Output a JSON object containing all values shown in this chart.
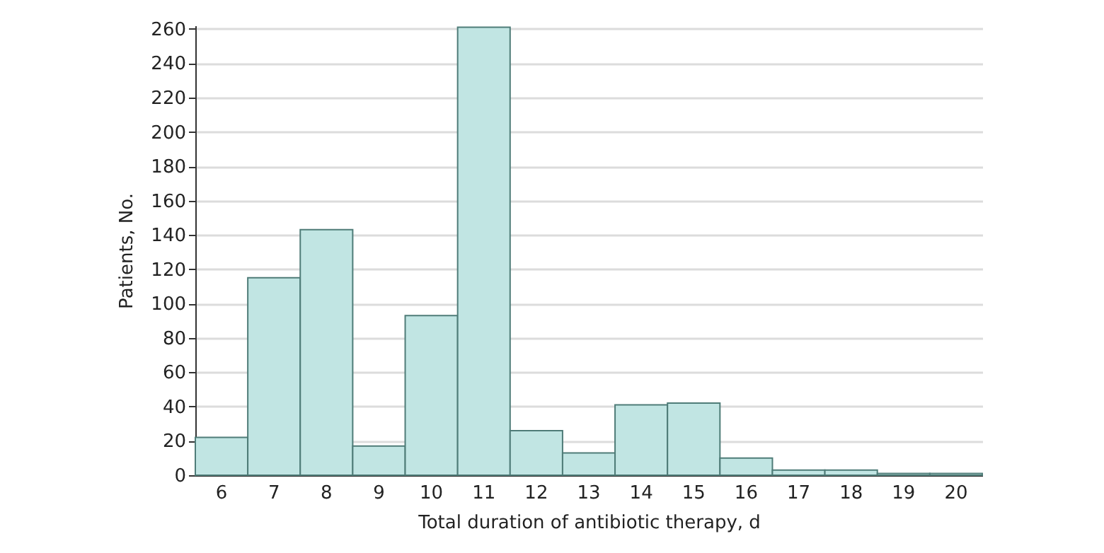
{
  "chart_data": {
    "type": "bar",
    "xlabel": "Total duration of antibiotic therapy, d",
    "ylabel": "Patients, No.",
    "categories": [
      "6",
      "7",
      "8",
      "9",
      "10",
      "11",
      "12",
      "13",
      "14",
      "15",
      "16",
      "17",
      "18",
      "19",
      "20"
    ],
    "values": [
      22,
      115,
      143,
      17,
      93,
      261,
      26,
      13,
      41,
      42,
      10,
      3,
      3,
      1,
      1
    ],
    "color": "#c1e5e3",
    "ylim": [
      0,
      262
    ],
    "yticks": [
      0,
      20,
      40,
      60,
      80,
      100,
      120,
      140,
      160,
      180,
      200,
      220,
      240,
      260
    ],
    "grid": "y"
  }
}
